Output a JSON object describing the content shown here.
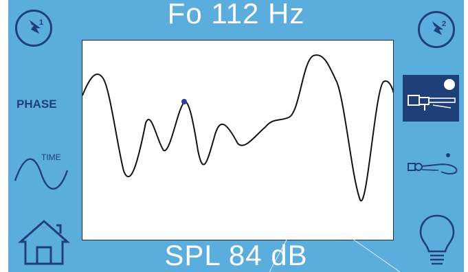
{
  "header": {
    "fundamental_label": "Fo 112 Hz"
  },
  "footer": {
    "spl_label": "SPL 84 dB"
  },
  "left_panel": {
    "btn1_label": "1",
    "phase_label": "PHASE",
    "time_label": "TIME"
  },
  "right_panel": {
    "btn2_label": "2"
  },
  "colors": {
    "background": "#5badde",
    "icon": "#1e3f77",
    "waveform": "#111111",
    "cursor": "#2a3f9a"
  },
  "icons": [
    "flash-1-icon",
    "flash-2-icon",
    "sine-wave-icon",
    "home-icon",
    "rigid-endoscope-icon",
    "flexible-endoscope-icon",
    "light-bulb-icon"
  ]
}
